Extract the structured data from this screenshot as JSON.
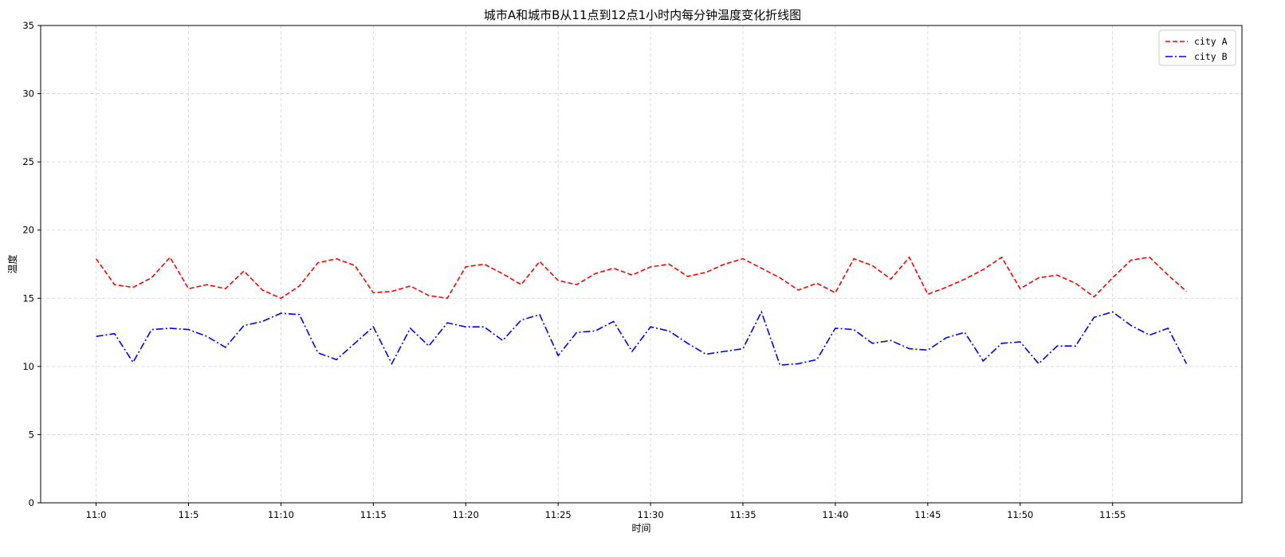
{
  "chart_data": {
    "type": "line",
    "title": "城市A和城市B从11点到12点1小时内每分钟温度变化折线图",
    "xlabel": "时间",
    "ylabel": "温度",
    "ylim": [
      0,
      35
    ],
    "yticks": [
      0,
      5,
      10,
      15,
      20,
      25,
      30,
      35
    ],
    "xlim": [
      -3,
      62
    ],
    "xticks": [
      0,
      5,
      10,
      15,
      20,
      25,
      30,
      35,
      40,
      45,
      50,
      55
    ],
    "xticklabels": [
      "11:0",
      "11:5",
      "11:10",
      "11:15",
      "11:20",
      "11:25",
      "11:30",
      "11:35",
      "11:40",
      "11:45",
      "11:50",
      "11:55"
    ],
    "grid": true,
    "legend_position": "top-right",
    "x": [
      0,
      1,
      2,
      3,
      4,
      5,
      6,
      7,
      8,
      9,
      10,
      11,
      12,
      13,
      14,
      15,
      16,
      17,
      18,
      19,
      20,
      21,
      22,
      23,
      24,
      25,
      26,
      27,
      28,
      29,
      30,
      31,
      32,
      33,
      34,
      35,
      36,
      37,
      38,
      39,
      40,
      41,
      42,
      43,
      44,
      45,
      46,
      47,
      48,
      49,
      50,
      51,
      52,
      53,
      54,
      55,
      56,
      57,
      58,
      59
    ],
    "series": [
      {
        "name": "city A",
        "color": "#ff0000",
        "style": "dashed",
        "values": [
          17.9,
          16.0,
          15.8,
          16.5,
          18.0,
          15.7,
          16.0,
          15.7,
          17.0,
          15.6,
          15.0,
          15.9,
          17.6,
          17.9,
          17.4,
          15.4,
          15.5,
          15.9,
          15.2,
          15.0,
          17.3,
          17.5,
          16.8,
          16.0,
          17.7,
          16.3,
          16.0,
          16.8,
          17.2,
          16.7,
          17.3,
          17.5,
          16.6,
          16.9,
          17.5,
          17.9,
          17.2,
          16.5,
          15.6,
          16.1,
          15.4,
          17.9,
          17.4,
          16.4,
          18.0,
          15.3,
          15.8,
          16.4,
          17.1,
          18.0,
          15.7,
          16.5,
          16.7,
          16.1,
          15.1,
          16.5,
          17.8,
          18.0,
          16.7,
          15.5
        ]
      },
      {
        "name": "city B",
        "color": "#0000ff",
        "style": "dashdot",
        "values": [
          12.2,
          12.4,
          10.3,
          12.7,
          12.8,
          12.7,
          12.2,
          11.4,
          13.0,
          13.3,
          13.9,
          13.8,
          11.0,
          10.5,
          11.7,
          12.9,
          10.2,
          12.8,
          11.5,
          13.2,
          12.9,
          12.9,
          11.9,
          13.4,
          13.8,
          10.8,
          12.5,
          12.6,
          13.3,
          11.1,
          12.9,
          12.6,
          11.7,
          10.9,
          11.1,
          11.3,
          14.0,
          10.1,
          10.2,
          10.5,
          12.8,
          12.7,
          11.7,
          11.9,
          11.3,
          11.2,
          12.1,
          12.5,
          10.4,
          11.7,
          11.8,
          10.2,
          11.5,
          11.5,
          13.6,
          14.0,
          13.0,
          12.3,
          12.8,
          10.2
        ]
      }
    ]
  }
}
